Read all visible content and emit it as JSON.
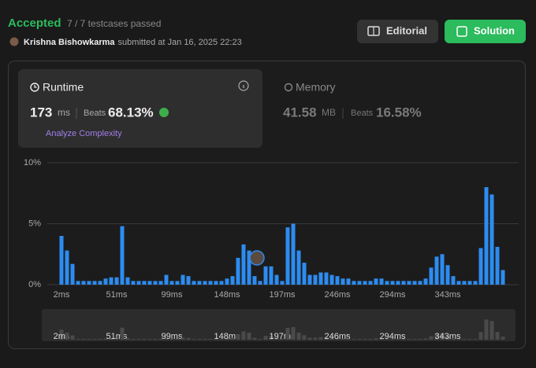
{
  "header": {
    "status": "Accepted",
    "testcases": "7 / 7 testcases passed",
    "user": "Krishna Bishowkarma",
    "submitted": "submitted at Jan 16, 2025 22:23"
  },
  "buttons": {
    "editorial": "Editorial",
    "solution": "Solution"
  },
  "runtime": {
    "title": "Runtime",
    "value": 173,
    "unit": "ms",
    "beats_label": "Beats",
    "beats": "68.13%",
    "analyze": "Analyze Complexity"
  },
  "memory": {
    "title": "Memory",
    "value": 41.58,
    "unit": "MB",
    "beats_label": "Beats",
    "beats": "16.58%"
  },
  "chart_data": {
    "type": "bar",
    "categories": [
      "2ms",
      null,
      null,
      null,
      null,
      null,
      null,
      null,
      null,
      null,
      "51ms",
      null,
      null,
      null,
      null,
      null,
      null,
      null,
      null,
      null,
      "99ms",
      null,
      null,
      null,
      null,
      null,
      null,
      null,
      null,
      null,
      "148ms",
      null,
      null,
      null,
      null,
      null,
      null,
      null,
      null,
      null,
      "197ms",
      null,
      null,
      null,
      null,
      null,
      null,
      null,
      null,
      null,
      "246ms",
      null,
      null,
      null,
      null,
      null,
      null,
      null,
      null,
      null,
      "294ms",
      null,
      null,
      null,
      null,
      null,
      null,
      null,
      null,
      null,
      "343ms",
      null,
      null,
      null,
      null,
      null,
      null,
      null,
      null,
      null,
      null
    ],
    "values": [
      4.0,
      2.8,
      1.7,
      0.3,
      0.3,
      0.3,
      0.3,
      0.3,
      0.5,
      0.6,
      0.6,
      4.8,
      0.6,
      0.3,
      0.3,
      0.3,
      0.3,
      0.3,
      0.3,
      0.8,
      0.3,
      0.3,
      0.8,
      0.7,
      0.3,
      0.3,
      0.3,
      0.3,
      0.3,
      0.3,
      0.5,
      0.7,
      2.2,
      3.3,
      2.8,
      0.7,
      0.3,
      1.5,
      1.5,
      0.8,
      0.3,
      4.7,
      5.0,
      2.8,
      1.8,
      0.8,
      0.8,
      1.0,
      1.0,
      0.8,
      0.7,
      0.5,
      0.5,
      0.3,
      0.3,
      0.3,
      0.3,
      0.5,
      0.5,
      0.3,
      0.3,
      0.3,
      0.3,
      0.3,
      0.3,
      0.3,
      0.5,
      1.4,
      2.3,
      2.5,
      1.6,
      0.7,
      0.3,
      0.3,
      0.3,
      0.3,
      3.0,
      8.0,
      7.4,
      3.1,
      1.2
    ],
    "color": "#2d8cf0",
    "ylim": [
      0,
      10
    ],
    "yticks": [
      {
        "value": 0,
        "label": "0%"
      },
      {
        "value": 5,
        "label": "5%"
      },
      {
        "value": 10,
        "label": "10%"
      }
    ],
    "grid": true
  }
}
